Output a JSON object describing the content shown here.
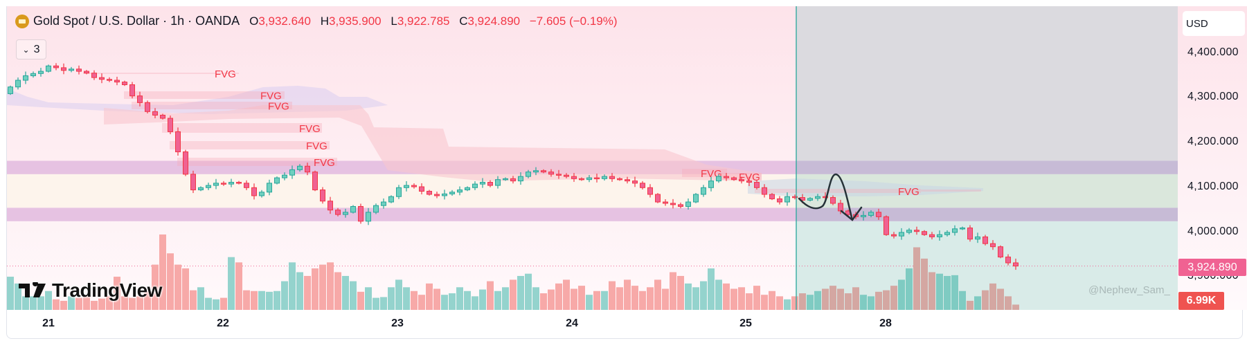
{
  "header": {
    "symbol_title": "Gold Spot / U.S. Dollar · 1h · OANDA",
    "ohlc": [
      {
        "key": "O",
        "value": "3,932.640"
      },
      {
        "key": "H",
        "value": "3,935.900"
      },
      {
        "key": "L",
        "value": "3,922.785"
      },
      {
        "key": "C",
        "value": "3,924.890"
      }
    ],
    "change": "−7.605 (−0.19%)",
    "indicators_toggle_count": "3"
  },
  "price_axis": {
    "currency": "USD",
    "ticks": [
      "4,400.000",
      "4,300.000",
      "4,200.000",
      "4,100.000",
      "4,000.000",
      "3,900.000"
    ],
    "last_price_label": "3,924.890",
    "volume_label": "6.99K"
  },
  "time_axis": {
    "ticks": [
      "21",
      "22",
      "23",
      "24",
      "25",
      "28"
    ]
  },
  "branding": {
    "logo": "TradingView",
    "watermark": "@Nephew_Sam_"
  },
  "annotations": {
    "fvg_label": "FVG"
  },
  "colors": {
    "up": "#26a69a",
    "up_fill": "#6fcfbf",
    "down": "#f23645",
    "down_fill": "#f06292",
    "last_price": "#f06292",
    "volume_label": "#ef5350",
    "band": "#e6c2e2"
  },
  "chart_data": {
    "type": "candlestick",
    "timeframe": "1h",
    "first_open": 4310,
    "closes": [
      4325,
      4340,
      4350,
      4355,
      4360,
      4372,
      4368,
      4362,
      4365,
      4360,
      4356,
      4346,
      4342,
      4340,
      4336,
      4330,
      4305,
      4290,
      4270,
      4262,
      4255,
      4225,
      4180,
      4130,
      4095,
      4100,
      4105,
      4110,
      4108,
      4112,
      4110,
      4100,
      4082,
      4090,
      4110,
      4122,
      4128,
      4140,
      4148,
      4135,
      4095,
      4070,
      4050,
      4040,
      4045,
      4058,
      4025,
      4045,
      4060,
      4068,
      4080,
      4100,
      4105,
      4102,
      4092,
      4085,
      4082,
      4086,
      4090,
      4095,
      4100,
      4108,
      4112,
      4105,
      4118,
      4120,
      4115,
      4125,
      4135,
      4138,
      4135,
      4130,
      4128,
      4125,
      4120,
      4118,
      4122,
      4120,
      4125,
      4120,
      4118,
      4115,
      4110,
      4100,
      4085,
      4068,
      4065,
      4062,
      4058,
      4068,
      4085,
      4100,
      4115,
      4125,
      4122,
      4118,
      4115,
      4112,
      4100,
      4085,
      4075,
      4068,
      4080,
      4078,
      4072,
      4076,
      4080,
      4078,
      4065,
      4048,
      4040,
      4035,
      4038,
      4045,
      4035,
      3995,
      3992,
      4000,
      4005,
      4002,
      3995,
      3990,
      3995,
      4000,
      4008,
      4010,
      3985,
      3990,
      3975,
      3968,
      3945,
      3932,
      3924.89
    ],
    "volumes_k": [
      44,
      35,
      18,
      18,
      18,
      25,
      14,
      12,
      18,
      16,
      18,
      12,
      15,
      18,
      44,
      18,
      16,
      18,
      25,
      60,
      100,
      75,
      60,
      55,
      26,
      30,
      16,
      14,
      16,
      70,
      63,
      26,
      25,
      25,
      24,
      25,
      38,
      63,
      50,
      45,
      55,
      60,
      63,
      50,
      45,
      38,
      24,
      30,
      16,
      17,
      30,
      40,
      30,
      25,
      20,
      35,
      28,
      20,
      22,
      30,
      25,
      18,
      27,
      38,
      25,
      30,
      40,
      45,
      48,
      30,
      22,
      27,
      35,
      40,
      28,
      32,
      20,
      25,
      25,
      38,
      30,
      40,
      32,
      25,
      30,
      40,
      28,
      50,
      45,
      35,
      30,
      38,
      55,
      40,
      35,
      28,
      30,
      22,
      32,
      20,
      25,
      18,
      14,
      18,
      22,
      20,
      25,
      28,
      32,
      28,
      22,
      30,
      20,
      18,
      24,
      26,
      32,
      40,
      55,
      83,
      68,
      50,
      48,
      45,
      46,
      25,
      12,
      18,
      26,
      35,
      28,
      18,
      6.99
    ],
    "zones": [
      {
        "name": "upper supply band",
        "from": 4130,
        "to": 4160
      },
      {
        "name": "range",
        "from": 4055,
        "to": 4130
      },
      {
        "name": "lower demand band",
        "from": 4025,
        "to": 4055
      }
    ],
    "last_price": 3924.89,
    "ylim": [
      3820,
      4450
    ]
  }
}
